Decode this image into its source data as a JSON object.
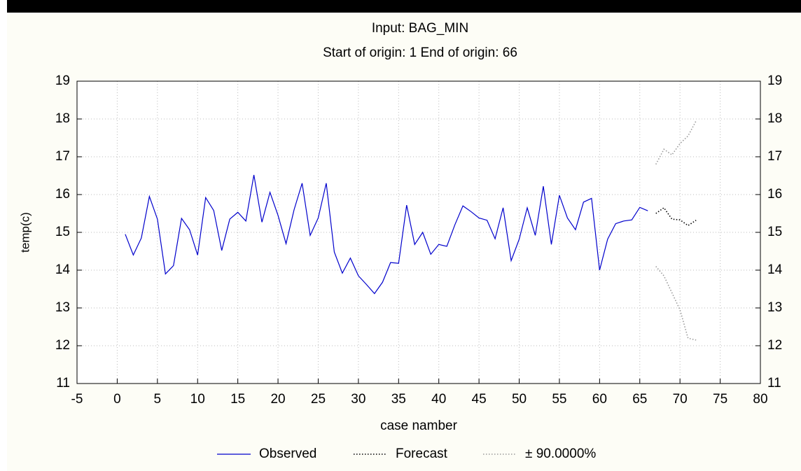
{
  "chart_data": {
    "type": "line",
    "title": "Input: BAG_MIN",
    "subtitle": "Start of origin: 1 End of origin: 66",
    "xlabel": "case namber",
    "ylabel": "temp(c)",
    "xlim": [
      -5,
      80
    ],
    "xticks": [
      -5,
      0,
      5,
      10,
      15,
      20,
      25,
      30,
      35,
      40,
      45,
      50,
      55,
      60,
      65,
      70,
      75,
      80
    ],
    "ylim": [
      11,
      19
    ],
    "yticks": [
      11,
      12,
      13,
      14,
      15,
      16,
      17,
      18,
      19
    ],
    "y2lim": [
      11,
      19
    ],
    "y2ticks": [
      11,
      12,
      13,
      14,
      15,
      16,
      17,
      18,
      19
    ],
    "grid": true,
    "legend": "bottom",
    "series": [
      {
        "name": "Observed",
        "color": "#0000cc",
        "style": "solid",
        "x": [
          1,
          2,
          3,
          4,
          5,
          6,
          7,
          8,
          9,
          10,
          11,
          12,
          13,
          14,
          15,
          16,
          17,
          18,
          19,
          20,
          21,
          22,
          23,
          24,
          25,
          26,
          27,
          28,
          29,
          30,
          31,
          32,
          33,
          34,
          35,
          36,
          37,
          38,
          39,
          40,
          41,
          42,
          43,
          44,
          45,
          46,
          47,
          48,
          49,
          50,
          51,
          52,
          53,
          54,
          55,
          56,
          57,
          58,
          59,
          60,
          61,
          62,
          63,
          64,
          65,
          66
        ],
        "values": [
          14.95,
          14.4,
          14.85,
          15.95,
          15.35,
          13.9,
          14.12,
          15.37,
          15.07,
          14.4,
          15.92,
          15.58,
          14.52,
          15.35,
          15.53,
          15.3,
          16.52,
          15.27,
          16.06,
          15.45,
          14.7,
          15.6,
          16.3,
          14.92,
          15.38,
          16.3,
          14.48,
          13.92,
          14.32,
          13.85,
          13.62,
          13.38,
          13.68,
          14.2,
          14.18,
          15.72,
          14.68,
          15.0,
          14.42,
          14.68,
          14.63,
          15.2,
          15.7,
          15.55,
          15.38,
          15.32,
          14.83,
          15.65,
          14.25,
          14.82,
          15.65,
          14.92,
          16.22,
          14.68,
          15.98,
          15.38,
          15.07,
          15.8,
          15.9,
          14.0,
          14.82,
          15.23,
          15.3,
          15.33,
          15.66,
          15.57
        ]
      },
      {
        "name": "Forecast",
        "color": "#000000",
        "style": "dotted",
        "x": [
          67,
          68,
          69,
          70,
          71,
          72
        ],
        "values": [
          15.5,
          15.65,
          15.35,
          15.33,
          15.18,
          15.32
        ]
      },
      {
        "name": "± 90.0000%",
        "color": "#999999",
        "style": "dotted",
        "x": [
          67,
          68,
          69,
          70,
          71,
          72
        ],
        "upper": [
          16.8,
          17.2,
          17.05,
          17.35,
          17.55,
          17.95
        ],
        "lower": [
          14.1,
          13.85,
          13.4,
          12.95,
          12.2,
          12.15
        ]
      }
    ]
  }
}
